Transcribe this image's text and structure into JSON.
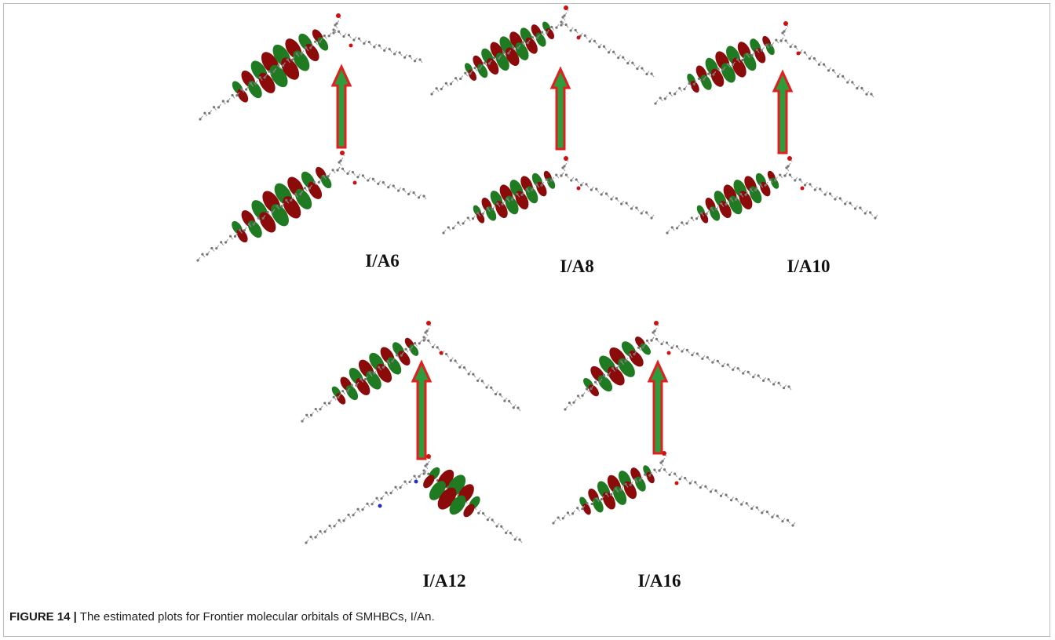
{
  "figure": {
    "panels": [
      {
        "label": "I/A6"
      },
      {
        "label": "I/A8"
      },
      {
        "label": "I/A10"
      },
      {
        "label": "I/A12"
      },
      {
        "label": "I/A16"
      }
    ]
  },
  "caption": {
    "label": "FIGURE 14 |",
    "text": "The estimated plots for Frontier molecular orbitals of SMHBCs, I/An."
  }
}
